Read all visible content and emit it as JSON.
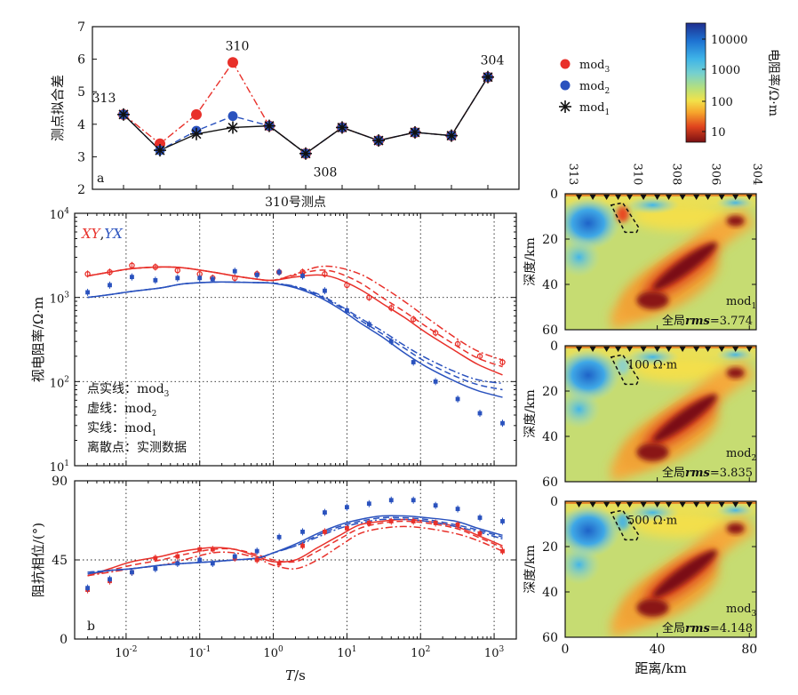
{
  "chart_data": [
    {
      "id": "a",
      "type": "line",
      "panel_label": "a",
      "ylabel": "测点拟合差",
      "ylim": [
        2,
        7
      ],
      "yticks": [
        "2",
        "3",
        "4",
        "5",
        "6",
        "7"
      ],
      "stations": [
        "313",
        "",
        "",
        "310",
        "",
        "",
        "308",
        "",
        "",
        "",
        "304"
      ],
      "x": [
        1,
        2,
        3,
        4,
        5,
        6,
        7,
        8,
        9,
        10,
        11
      ],
      "series": [
        {
          "name": "mod3",
          "color": "#e8302a",
          "style": "dashdot",
          "marker": "circle",
          "values": [
            4.3,
            3.4,
            4.3,
            5.9,
            3.95,
            3.1,
            3.9,
            3.5,
            3.75,
            3.65,
            5.45
          ]
        },
        {
          "name": "mod2",
          "color": "#2a52be",
          "style": "dashed",
          "marker": "circle",
          "values": [
            4.3,
            3.2,
            3.8,
            4.25,
            3.95,
            3.1,
            3.9,
            3.5,
            3.75,
            3.65,
            5.45
          ]
        },
        {
          "name": "mod1",
          "color": "#111111",
          "style": "solid",
          "marker": "star",
          "values": [
            4.3,
            3.2,
            3.7,
            3.9,
            3.95,
            3.1,
            3.9,
            3.5,
            3.75,
            3.65,
            5.45
          ]
        }
      ],
      "annotations": [
        {
          "text": "313",
          "index": 0
        },
        {
          "text": "310",
          "index": 3
        },
        {
          "text": "308",
          "index": 5
        },
        {
          "text": "304",
          "index": 10
        }
      ],
      "legend": [
        {
          "label": "mod",
          "sub": "3",
          "color": "#e8302a",
          "marker": "circle"
        },
        {
          "label": "mod",
          "sub": "2",
          "color": "#2a52be",
          "marker": "circle"
        },
        {
          "label": "mod",
          "sub": "1",
          "color": "#111111",
          "marker": "star"
        }
      ]
    },
    {
      "id": "rho",
      "type": "line",
      "title": "310号测点",
      "ylabel": "视电阻率/Ω·m",
      "xscale": "log",
      "yscale": "log",
      "xlim": [
        0.002,
        2000
      ],
      "ylim": [
        10,
        10000
      ],
      "yticks": [
        "10",
        "10",
        "10",
        "10"
      ],
      "ytick_exp": [
        "1",
        "2",
        "3",
        "4"
      ],
      "xy_label": "XY",
      "yx_label": "YX",
      "sep": ",",
      "observed_xy": {
        "x": [
          0.003,
          0.006,
          0.012,
          0.025,
          0.05,
          0.1,
          0.15,
          0.3,
          0.6,
          1.2,
          2.5,
          5,
          10,
          20,
          40,
          80,
          160,
          320,
          640,
          1300
        ],
        "y": [
          1900,
          2000,
          2400,
          2300,
          2100,
          1900,
          1700,
          1700,
          1900,
          2000,
          2000,
          1900,
          1400,
          1000,
          750,
          550,
          380,
          280,
          200,
          170
        ]
      },
      "observed_yx": {
        "x": [
          0.003,
          0.006,
          0.012,
          0.025,
          0.05,
          0.1,
          0.15,
          0.3,
          0.6,
          1.2,
          2.5,
          5,
          10,
          20,
          40,
          80,
          160,
          320,
          640,
          1300
        ],
        "y": [
          1150,
          1400,
          1750,
          1600,
          1700,
          1700,
          1650,
          2050,
          1850,
          2000,
          1800,
          1200,
          700,
          480,
          300,
          170,
          100,
          62,
          42,
          32
        ]
      },
      "fits": [
        {
          "name": "mod3",
          "pol": "XY",
          "color": "#e8302a",
          "style": "dashdot",
          "x": [
            0.003,
            0.006,
            0.012,
            0.03,
            0.06,
            0.15,
            0.3,
            0.6,
            1,
            2,
            4,
            7,
            15,
            30,
            60,
            120,
            300,
            600,
            1300
          ],
          "y": [
            1800,
            2000,
            2200,
            2300,
            2250,
            2000,
            1800,
            1650,
            1600,
            1900,
            2300,
            2300,
            1900,
            1350,
            900,
            580,
            330,
            230,
            180
          ]
        },
        {
          "name": "mod2",
          "pol": "XY",
          "color": "#e8302a",
          "style": "dashed",
          "x": [
            0.003,
            0.006,
            0.012,
            0.03,
            0.06,
            0.15,
            0.3,
            0.6,
            1,
            2,
            4,
            7,
            15,
            30,
            60,
            120,
            300,
            600,
            1300
          ],
          "y": [
            1800,
            2000,
            2200,
            2300,
            2250,
            2000,
            1800,
            1650,
            1600,
            1850,
            2100,
            2000,
            1500,
            1000,
            680,
            450,
            270,
            190,
            150
          ]
        },
        {
          "name": "mod1",
          "pol": "XY",
          "color": "#e8302a",
          "style": "solid",
          "x": [
            0.003,
            0.006,
            0.012,
            0.03,
            0.06,
            0.15,
            0.3,
            0.6,
            1,
            2,
            4,
            7,
            15,
            30,
            60,
            120,
            300,
            600,
            1300
          ],
          "y": [
            1800,
            2000,
            2200,
            2300,
            2250,
            2000,
            1800,
            1650,
            1600,
            1750,
            1850,
            1700,
            1250,
            850,
            580,
            380,
            230,
            160,
            120
          ]
        },
        {
          "name": "mod3",
          "pol": "YX",
          "color": "#2a52be",
          "style": "dashdot",
          "x": [
            0.003,
            0.006,
            0.012,
            0.03,
            0.06,
            0.15,
            0.3,
            0.6,
            1,
            2,
            4,
            8,
            15,
            30,
            60,
            120,
            300,
            600,
            1300
          ],
          "y": [
            1000,
            1080,
            1180,
            1300,
            1450,
            1520,
            1520,
            1500,
            1480,
            1350,
            1100,
            800,
            570,
            400,
            270,
            190,
            130,
            105,
            95
          ]
        },
        {
          "name": "mod2",
          "pol": "YX",
          "color": "#2a52be",
          "style": "dashed",
          "x": [
            0.003,
            0.006,
            0.012,
            0.03,
            0.06,
            0.15,
            0.3,
            0.6,
            1,
            2,
            4,
            8,
            15,
            30,
            60,
            120,
            300,
            600,
            1300
          ],
          "y": [
            1000,
            1080,
            1180,
            1300,
            1450,
            1520,
            1520,
            1500,
            1480,
            1330,
            1070,
            770,
            540,
            370,
            250,
            170,
            115,
            92,
            80
          ]
        },
        {
          "name": "mod1",
          "pol": "YX",
          "color": "#2a52be",
          "style": "solid",
          "x": [
            0.003,
            0.006,
            0.012,
            0.03,
            0.06,
            0.15,
            0.3,
            0.6,
            1,
            2,
            4,
            8,
            15,
            30,
            60,
            120,
            300,
            600,
            1300
          ],
          "y": [
            1000,
            1080,
            1180,
            1300,
            1450,
            1520,
            1520,
            1500,
            1470,
            1300,
            1030,
            730,
            500,
            340,
            220,
            150,
            100,
            78,
            65
          ]
        }
      ],
      "legend_text": [
        {
          "text": "点实线：mod",
          "sub": "3"
        },
        {
          "text": "虚线：mod",
          "sub": "2"
        },
        {
          "text": "实线：mod",
          "sub": "1"
        },
        {
          "text": "离散点：实测数据",
          "sub": ""
        }
      ]
    },
    {
      "id": "phase",
      "type": "line",
      "panel_label": "b",
      "ylabel": "阻抗相位/(°)",
      "xlabel_italic": "T",
      "xlabel_rest": "/s",
      "xscale": "log",
      "xlim": [
        0.002,
        2000
      ],
      "ylim": [
        0,
        90
      ],
      "yticks": [
        "0",
        "45",
        "90"
      ],
      "xticks": [
        "10",
        "10",
        "10",
        "10",
        "10",
        "10"
      ],
      "xtick_exp": [
        "-2",
        "-1",
        "0",
        "1",
        "2",
        "3"
      ],
      "observed_xy": {
        "x": [
          0.003,
          0.006,
          0.012,
          0.025,
          0.05,
          0.1,
          0.15,
          0.3,
          0.6,
          1.2,
          2.5,
          5,
          10,
          20,
          40,
          80,
          160,
          320,
          640,
          1300
        ],
        "y": [
          28,
          33,
          38,
          46,
          47,
          51,
          51,
          46,
          45,
          43,
          53,
          61,
          63,
          66,
          67,
          67,
          66,
          65,
          60,
          50
        ]
      },
      "observed_yx": {
        "x": [
          0.003,
          0.006,
          0.012,
          0.025,
          0.05,
          0.1,
          0.15,
          0.3,
          0.6,
          1.2,
          2.5,
          5,
          10,
          20,
          40,
          80,
          160,
          320,
          640,
          1300
        ],
        "y": [
          29,
          34,
          38,
          40,
          43,
          45,
          43,
          47,
          50,
          58,
          61,
          72,
          75,
          77,
          79,
          79,
          76,
          74,
          69,
          67
        ]
      },
      "fits": [
        {
          "name": "mod3",
          "pol": "XY",
          "color": "#e8302a",
          "style": "dashdot",
          "x": [
            0.003,
            0.006,
            0.012,
            0.03,
            0.06,
            0.15,
            0.3,
            0.6,
            1,
            2,
            4,
            8,
            15,
            30,
            60,
            120,
            300,
            600,
            1300
          ],
          "y": [
            36,
            38,
            40,
            42,
            45,
            49,
            49,
            46,
            42,
            40,
            45,
            53,
            60,
            63,
            64,
            63,
            60,
            56,
            50
          ]
        },
        {
          "name": "mod2",
          "pol": "XY",
          "color": "#e8302a",
          "style": "dashed",
          "x": [
            0.003,
            0.006,
            0.012,
            0.03,
            0.06,
            0.15,
            0.3,
            0.6,
            1,
            2,
            4,
            8,
            15,
            30,
            60,
            120,
            300,
            600,
            1300
          ],
          "y": [
            36,
            39,
            42,
            45,
            48,
            51,
            51,
            48,
            45,
            44,
            50,
            57,
            63,
            66,
            67,
            66,
            63,
            58,
            52
          ]
        },
        {
          "name": "mod1",
          "pol": "XY",
          "color": "#e8302a",
          "style": "solid",
          "x": [
            0.003,
            0.006,
            0.012,
            0.03,
            0.06,
            0.15,
            0.3,
            0.6,
            1,
            2,
            4,
            8,
            15,
            30,
            60,
            120,
            300,
            600,
            1300
          ],
          "y": [
            36,
            40,
            44,
            47,
            50,
            52,
            51,
            47,
            44,
            45,
            52,
            59,
            65,
            67,
            68,
            67,
            64,
            59,
            53
          ]
        },
        {
          "name": "mod3",
          "pol": "YX",
          "color": "#2a52be",
          "style": "dashdot",
          "x": [
            0.003,
            0.006,
            0.012,
            0.03,
            0.06,
            0.15,
            0.3,
            0.6,
            1,
            2,
            4,
            8,
            15,
            30,
            60,
            120,
            300,
            600,
            1300
          ],
          "y": [
            38,
            39,
            40,
            42,
            43,
            44,
            45,
            46,
            49,
            53,
            58,
            63,
            66,
            68,
            68,
            67,
            64,
            61,
            57
          ]
        },
        {
          "name": "mod2",
          "pol": "YX",
          "color": "#2a52be",
          "style": "dashed",
          "x": [
            0.003,
            0.006,
            0.012,
            0.03,
            0.06,
            0.15,
            0.3,
            0.6,
            1,
            2,
            4,
            8,
            15,
            30,
            60,
            120,
            300,
            600,
            1300
          ],
          "y": [
            38,
            39,
            40,
            42,
            43,
            44,
            45,
            46,
            49,
            53,
            59,
            64,
            67,
            69,
            69,
            68,
            65,
            62,
            58
          ]
        },
        {
          "name": "mod1",
          "pol": "YX",
          "color": "#2a52be",
          "style": "solid",
          "x": [
            0.003,
            0.006,
            0.012,
            0.03,
            0.06,
            0.15,
            0.3,
            0.6,
            1,
            2,
            4,
            8,
            15,
            30,
            60,
            120,
            300,
            600,
            1300
          ],
          "y": [
            37,
            39,
            40,
            42,
            43,
            44,
            45,
            46,
            49,
            54,
            60,
            65,
            68,
            70,
            70,
            69,
            67,
            63,
            59
          ]
        }
      ]
    },
    {
      "id": "sections",
      "type": "heatmap",
      "ylabel": "深度/km",
      "xlabel": "距离/km",
      "xlim": [
        0,
        83
      ],
      "ylim": [
        60,
        0
      ],
      "xticks": [
        "0",
        "40",
        "80"
      ],
      "yticks": [
        "0",
        "20",
        "40",
        "60"
      ],
      "stations": [
        {
          "label": "313",
          "x": 0
        },
        {
          "label": "310",
          "x": 28
        },
        {
          "label": "308",
          "x": 45
        },
        {
          "label": "306",
          "x": 62
        },
        {
          "label": "304",
          "x": 80
        }
      ],
      "station_marker_x": [
        6,
        12,
        18,
        23,
        28,
        34,
        40,
        45,
        51,
        57,
        62,
        68,
        74,
        80
      ],
      "panels": [
        {
          "name": "mod",
          "sub": "1",
          "rms_prefix": "全局",
          "rms_label": "rms",
          "rms_value": "=3.774",
          "annotation": ""
        },
        {
          "name": "mod",
          "sub": "2",
          "rms_prefix": "全局",
          "rms_label": "rms",
          "rms_value": "=3.835",
          "annotation": "100 Ω·m"
        },
        {
          "name": "mod",
          "sub": "3",
          "rms_prefix": "全局",
          "rms_label": "rms",
          "rms_value": "=4.148",
          "annotation": "500 Ω·m"
        }
      ],
      "colorbar": {
        "label": "电阻率/Ω·m",
        "ticks": [
          "10000",
          "1000",
          "100",
          "10"
        ],
        "scale": "log",
        "colors": [
          "#1f2e8f",
          "#1e73d2",
          "#3fb4e8",
          "#75d0cf",
          "#b8e07a",
          "#f2e24a",
          "#f6a52c",
          "#e0441e",
          "#7a0f12"
        ]
      }
    }
  ]
}
